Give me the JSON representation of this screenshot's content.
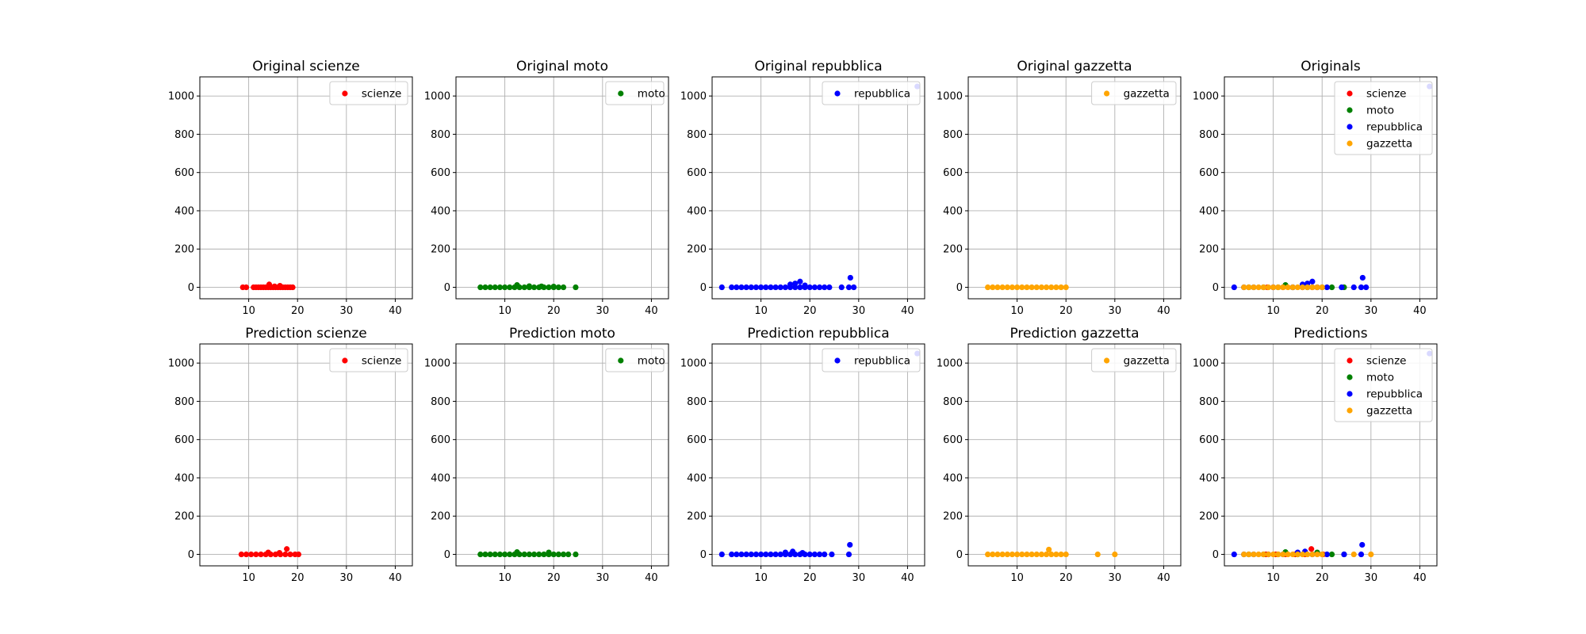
{
  "figure": {
    "xlim": [
      0,
      43.5
    ],
    "ylim": [
      -60,
      1100
    ],
    "xticks": [
      "10",
      "20",
      "30",
      "40"
    ],
    "xtick_values": [
      10,
      20,
      30,
      40
    ],
    "yticks": [
      "0",
      "200",
      "400",
      "600",
      "800",
      "1000"
    ],
    "ytick_values": [
      0,
      200,
      400,
      600,
      800,
      1000
    ],
    "grid": true,
    "colors": {
      "scienze": "#ff0000",
      "moto": "#008000",
      "repubblica": "#0000ff",
      "gazzetta": "#ffa500"
    }
  },
  "chart_data": [
    {
      "type": "scatter",
      "title": "Original scienze",
      "legend": "top-right",
      "series": [
        {
          "name": "scienze",
          "color": "#ff0000",
          "x": [
            8.8,
            9.5,
            11,
            11.5,
            12,
            12.5,
            13,
            13.5,
            14,
            14.5,
            15,
            15.5,
            16,
            16.5,
            17,
            17.5,
            18,
            18.5,
            19,
            14.2,
            15.3,
            16.4
          ],
          "y": [
            0,
            0,
            0,
            0,
            0,
            0,
            0,
            0,
            0,
            0,
            0,
            0,
            0,
            0,
            0,
            0,
            0,
            0,
            0,
            15,
            5,
            8
          ]
        }
      ]
    },
    {
      "type": "scatter",
      "title": "Original moto",
      "legend": "top-right",
      "series": [
        {
          "name": "moto",
          "color": "#008000",
          "x": [
            5,
            6,
            7,
            8,
            9,
            10,
            11,
            12,
            13,
            14,
            15,
            16,
            17,
            18,
            19,
            20,
            21,
            22,
            24.5,
            12.5,
            15,
            17.5,
            20
          ],
          "y": [
            0,
            0,
            0,
            0,
            0,
            0,
            0,
            0,
            0,
            0,
            0,
            0,
            0,
            0,
            0,
            0,
            0,
            0,
            0,
            12,
            6,
            5,
            4
          ]
        }
      ]
    },
    {
      "type": "scatter",
      "title": "Original repubblica",
      "legend": "top-right",
      "series": [
        {
          "name": "repubblica",
          "color": "#0000ff",
          "x": [
            2,
            4,
            5,
            6,
            7,
            8,
            9,
            10,
            11,
            12,
            13,
            14,
            15,
            16,
            17,
            18,
            19,
            20,
            21,
            22,
            23,
            24,
            26.5,
            28,
            29,
            16,
            17,
            18,
            19,
            28.3,
            42
          ],
          "y": [
            0,
            0,
            0,
            0,
            0,
            0,
            0,
            0,
            0,
            0,
            0,
            0,
            0,
            0,
            0,
            0,
            0,
            0,
            0,
            0,
            0,
            0,
            0,
            0,
            0,
            15,
            20,
            30,
            10,
            50,
            1050
          ]
        }
      ]
    },
    {
      "type": "scatter",
      "title": "Original gazzetta",
      "legend": "top-right",
      "series": [
        {
          "name": "gazzetta",
          "color": "#ffa500",
          "x": [
            4,
            5,
            6,
            7,
            8,
            9,
            10,
            11,
            12,
            13,
            14,
            15,
            16,
            17,
            18,
            19,
            20
          ],
          "y": [
            0,
            0,
            0,
            0,
            0,
            0,
            0,
            0,
            0,
            0,
            0,
            0,
            0,
            0,
            0,
            0,
            0
          ]
        }
      ]
    },
    {
      "type": "scatter",
      "title": "Originals",
      "legend": "top-right",
      "series": [
        {
          "name": "scienze",
          "color": "#ff0000",
          "x": [
            8.8,
            10,
            12,
            14,
            16,
            18,
            19
          ],
          "y": [
            0,
            0,
            0,
            0,
            0,
            0,
            0
          ]
        },
        {
          "name": "moto",
          "color": "#008000",
          "x": [
            5,
            8,
            11,
            12.5,
            14,
            17,
            20,
            22,
            24.5
          ],
          "y": [
            0,
            0,
            0,
            12,
            0,
            0,
            0,
            0,
            0
          ]
        },
        {
          "name": "repubblica",
          "color": "#0000ff",
          "x": [
            2,
            4,
            6,
            10,
            14,
            16,
            17,
            18,
            19,
            21,
            24,
            26.5,
            28,
            28.3,
            29,
            42
          ],
          "y": [
            0,
            0,
            0,
            0,
            0,
            15,
            20,
            30,
            0,
            0,
            0,
            0,
            0,
            50,
            0,
            1050
          ]
        },
        {
          "name": "gazzetta",
          "color": "#ffa500",
          "x": [
            4,
            5,
            6,
            7,
            8,
            9,
            10,
            11,
            12,
            13,
            14,
            15,
            16,
            17,
            18,
            19,
            20
          ],
          "y": [
            0,
            0,
            0,
            0,
            0,
            0,
            0,
            0,
            0,
            0,
            0,
            0,
            0,
            0,
            0,
            0,
            0
          ]
        }
      ]
    },
    {
      "type": "scatter",
      "title": "Prediction scienze",
      "legend": "top-right",
      "series": [
        {
          "name": "scienze",
          "color": "#ff0000",
          "x": [
            8.5,
            9.5,
            10.5,
            11.5,
            12.5,
            13.5,
            14.5,
            15.5,
            16.5,
            17.5,
            18.5,
            19.5,
            20.2,
            14,
            16.3,
            17.8
          ],
          "y": [
            0,
            0,
            0,
            0,
            0,
            0,
            0,
            0,
            0,
            0,
            0,
            0,
            0,
            10,
            8,
            28
          ]
        }
      ]
    },
    {
      "type": "scatter",
      "title": "Prediction moto",
      "legend": "top-right",
      "series": [
        {
          "name": "moto",
          "color": "#008000",
          "x": [
            5,
            6,
            7,
            8,
            9,
            10,
            11,
            12,
            13,
            14,
            15,
            16,
            17,
            18,
            19,
            20,
            21,
            22,
            23,
            24.5,
            12.5,
            19
          ],
          "y": [
            0,
            0,
            0,
            0,
            0,
            0,
            0,
            0,
            0,
            0,
            0,
            0,
            0,
            0,
            0,
            0,
            0,
            0,
            0,
            0,
            12,
            10
          ]
        }
      ]
    },
    {
      "type": "scatter",
      "title": "Prediction repubblica",
      "legend": "top-right",
      "series": [
        {
          "name": "repubblica",
          "color": "#0000ff",
          "x": [
            2,
            4,
            5,
            6,
            7,
            8,
            9,
            10,
            11,
            12,
            13,
            14,
            15,
            16,
            17,
            18,
            19,
            20,
            21,
            22,
            23,
            24.5,
            28,
            28.2,
            15,
            16.5,
            18.5,
            42
          ],
          "y": [
            0,
            0,
            0,
            0,
            0,
            0,
            0,
            0,
            0,
            0,
            0,
            0,
            0,
            0,
            0,
            0,
            0,
            0,
            0,
            0,
            0,
            0,
            0,
            50,
            10,
            15,
            8,
            1050
          ]
        }
      ]
    },
    {
      "type": "scatter",
      "title": "Prediction gazzetta",
      "legend": "top-right",
      "series": [
        {
          "name": "gazzetta",
          "color": "#ffa500",
          "x": [
            4,
            5,
            6,
            7,
            8,
            9,
            10,
            11,
            12,
            13,
            14,
            15,
            16,
            17,
            18,
            19,
            20,
            26.5,
            30,
            16.5
          ],
          "y": [
            0,
            0,
            0,
            0,
            0,
            0,
            0,
            0,
            0,
            0,
            0,
            0,
            0,
            0,
            0,
            0,
            0,
            0,
            0,
            25
          ]
        }
      ]
    },
    {
      "type": "scatter",
      "title": "Predictions",
      "legend": "top-right",
      "series": [
        {
          "name": "scienze",
          "color": "#ff0000",
          "x": [
            8.5,
            10.5,
            12.5,
            14.5,
            16.5,
            17.8,
            20.2
          ],
          "y": [
            0,
            0,
            0,
            0,
            0,
            28,
            0
          ]
        },
        {
          "name": "moto",
          "color": "#008000",
          "x": [
            5,
            8,
            11,
            12.5,
            15,
            19,
            22,
            24.5
          ],
          "y": [
            0,
            0,
            0,
            12,
            0,
            10,
            0,
            0
          ]
        },
        {
          "name": "repubblica",
          "color": "#0000ff",
          "x": [
            2,
            4,
            6,
            9,
            12,
            15,
            16.5,
            18,
            21,
            24.5,
            28,
            28.2,
            42
          ],
          "y": [
            0,
            0,
            0,
            0,
            0,
            10,
            15,
            0,
            0,
            0,
            0,
            50,
            1050
          ]
        },
        {
          "name": "gazzetta",
          "color": "#ffa500",
          "x": [
            4,
            5,
            6,
            7,
            8,
            9,
            10,
            11,
            12,
            13,
            14,
            15,
            16,
            17,
            18,
            19,
            20,
            26.5,
            30
          ],
          "y": [
            0,
            0,
            0,
            0,
            0,
            0,
            0,
            0,
            0,
            0,
            0,
            0,
            0,
            0,
            0,
            0,
            0,
            0,
            0
          ]
        }
      ]
    }
  ]
}
